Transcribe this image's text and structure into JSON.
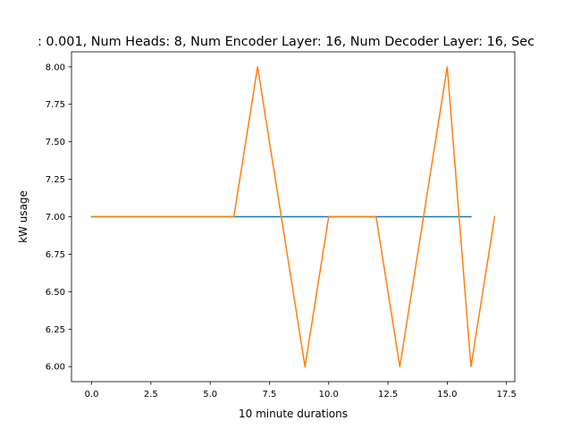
{
  "chart_data": {
    "type": "line",
    "title": ": 0.001, Num Heads: 8, Num Encoder Layer: 16, Num Decoder Layer: 16, Sec",
    "xlabel": "10 minute durations",
    "ylabel": "kW usage",
    "xlim": [
      -0.85,
      17.85
    ],
    "ylim": [
      5.9,
      8.1
    ],
    "xticks": [
      0.0,
      2.5,
      5.0,
      7.5,
      10.0,
      12.5,
      15.0,
      17.5
    ],
    "xtick_labels": [
      "0.0",
      "2.5",
      "5.0",
      "7.5",
      "10.0",
      "12.5",
      "15.0",
      "17.5"
    ],
    "yticks": [
      6.0,
      6.25,
      6.5,
      6.75,
      7.0,
      7.25,
      7.5,
      7.75,
      8.0
    ],
    "ytick_labels": [
      "6.00",
      "6.25",
      "6.50",
      "6.75",
      "7.00",
      "7.25",
      "7.50",
      "7.75",
      "8.00"
    ],
    "grid": false,
    "series": [
      {
        "color": "#1f77b4",
        "x": [
          0,
          1,
          2,
          3,
          4,
          5,
          6,
          7,
          8,
          9,
          10,
          11,
          12,
          13,
          14,
          15,
          16
        ],
        "y": [
          7,
          7,
          7,
          7,
          7,
          7,
          7,
          7,
          7,
          7,
          7,
          7,
          7,
          7,
          7,
          7,
          7
        ]
      },
      {
        "color": "#ff7f0e",
        "x": [
          0,
          1,
          2,
          3,
          4,
          5,
          6,
          7,
          8,
          9,
          10,
          11,
          12,
          13,
          14,
          15,
          16,
          17
        ],
        "y": [
          7,
          7,
          7,
          7,
          7,
          7,
          7,
          8,
          7,
          6,
          7,
          7,
          7,
          6,
          7,
          8,
          6,
          7
        ]
      }
    ]
  }
}
